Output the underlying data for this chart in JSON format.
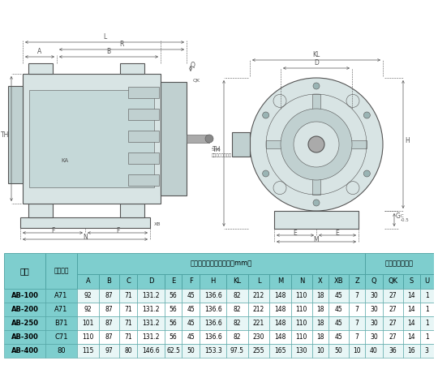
{
  "bg_color": "#ffffff",
  "diagram_line_color": "#555555",
  "diagram_fill_light": "#d8e4e4",
  "diagram_fill_mid": "#c0d0d0",
  "diagram_fill_dark": "#a8bcbc",
  "table_header_bg": "#7ecece",
  "table_border_color": "#4aa0a0",
  "table_row_bg_a": "#e8f6f6",
  "table_row_bg_b": "#ffffff",
  "col_headers2": [
    "A",
    "B",
    "C",
    "D",
    "E",
    "F",
    "H",
    "KL",
    "L",
    "M",
    "N",
    "X",
    "XB",
    "Z",
    "Q",
    "QK",
    "S",
    "U"
  ],
  "rows_display": [
    [
      "AB-100",
      "A71",
      "92",
      "87",
      "71",
      "131.2",
      "56",
      "45",
      "136.6",
      "82",
      "212",
      "148",
      "110",
      "18",
      "45",
      "7",
      "30",
      "27",
      "14",
      "1"
    ],
    [
      "AB-200",
      "A71",
      "92",
      "87",
      "71",
      "131.2",
      "56",
      "45",
      "136.6",
      "82",
      "212",
      "148",
      "110",
      "18",
      "45",
      "7",
      "30",
      "27",
      "14",
      "1"
    ],
    [
      "AB-250",
      "B71",
      "101",
      "87",
      "71",
      "131.2",
      "56",
      "45",
      "136.6",
      "82",
      "221",
      "148",
      "110",
      "18",
      "45",
      "7",
      "30",
      "27",
      "14",
      "1"
    ],
    [
      "AB-300",
      "C71",
      "110",
      "87",
      "71",
      "131.2",
      "56",
      "45",
      "136.6",
      "82",
      "230",
      "148",
      "110",
      "18",
      "45",
      "7",
      "30",
      "27",
      "14",
      "1"
    ],
    [
      "AB-400",
      "80",
      "115",
      "97",
      "80",
      "146.6",
      "62.5",
      "50",
      "153.3",
      "97.5",
      "255",
      "165",
      "130",
      "10",
      "50",
      "10",
      "40",
      "36",
      "16",
      "3"
    ]
  ]
}
